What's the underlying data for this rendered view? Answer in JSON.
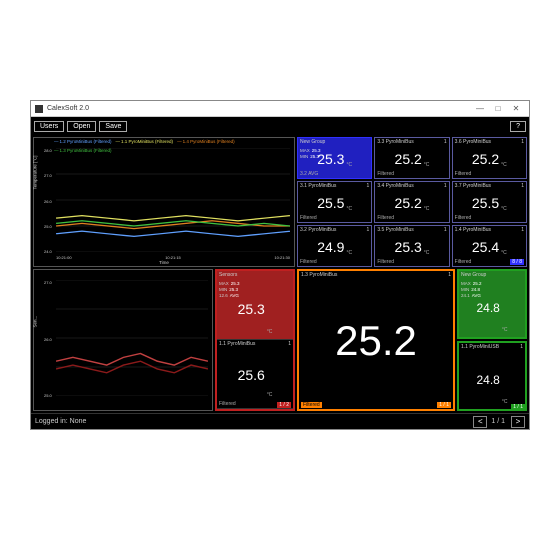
{
  "window": {
    "title": "CalexSoft 2.0"
  },
  "toolbar": {
    "users": "Users",
    "open": "Open",
    "save": "Save",
    "help": "?"
  },
  "colors": {
    "bg": "#000000",
    "border_default": "#5a5aa0",
    "border_group": "#3030ff",
    "border_orange": "#ff8000",
    "border_red": "#c02020",
    "border_green": "#20a020",
    "text": "#ffffff",
    "muted": "#aaaaaa",
    "series1": "#60a0ff",
    "series2": "#e0e060",
    "series3": "#e08020",
    "series4": "#40c040"
  },
  "chart1": {
    "ylabel": "Temperature [°C]",
    "xlabel": "Time",
    "ylim": [
      24.0,
      28.0
    ],
    "yticks": [
      "28.0",
      "27.0",
      "26.0",
      "25.0",
      "24.0"
    ],
    "xticks": [
      "10:21:00",
      "10:21:15",
      "10:21:30"
    ],
    "legend": [
      {
        "label": "1.2 PyroMiniBus (Filtered)",
        "color": "#60a0ff"
      },
      {
        "label": "1.1 PyroMiniBus (Filtered)",
        "color": "#e0e060"
      },
      {
        "label": "1.4 PyroMiniBus (Filtered)",
        "color": "#e08020"
      },
      {
        "label": "1.3 PyroMiniBus (Filtered)",
        "color": "#40c040"
      }
    ],
    "series": [
      {
        "color": "#e08020",
        "y": [
          25.0,
          25.1,
          25.0,
          24.9,
          25.0,
          25.1,
          25.2,
          25.1,
          25.0,
          25.0
        ]
      },
      {
        "color": "#e0e060",
        "y": [
          25.3,
          25.4,
          25.3,
          25.2,
          25.3,
          25.4,
          25.3,
          25.2,
          25.3,
          25.4
        ]
      },
      {
        "color": "#40c040",
        "y": [
          25.1,
          25.2,
          25.1,
          25.0,
          25.1,
          25.2,
          25.1,
          25.0,
          25.1,
          25.0
        ]
      },
      {
        "color": "#60a0ff",
        "y": [
          24.7,
          24.8,
          24.7,
          24.6,
          24.7,
          24.8,
          24.7,
          24.6,
          24.7,
          24.8
        ]
      }
    ]
  },
  "chart2": {
    "ylabel": "Sen...",
    "yticks": [
      "27.0",
      "26.0",
      "25.0"
    ],
    "ylim": [
      24.5,
      27.5
    ],
    "series": [
      {
        "color": "#c04040",
        "y": [
          25.4,
          25.5,
          25.4,
          25.3,
          25.5,
          25.6,
          25.4,
          25.3,
          25.5,
          25.4
        ]
      },
      {
        "color": "#8b1a1a",
        "y": [
          25.2,
          25.3,
          25.2,
          25.1,
          25.3,
          25.4,
          25.2,
          25.1,
          25.3,
          25.2
        ]
      }
    ]
  },
  "grid": {
    "counter": "8 / 8",
    "tiles": [
      {
        "name": "New Group",
        "val": "25.3",
        "unit": "°C",
        "footer": "3.2   AVG",
        "border": "#3030ff",
        "bg": "#2020c0",
        "stats": {
          "max": "25.3",
          "min": "25.3"
        }
      },
      {
        "name": "3.3 PyroMiniBus",
        "val": "25.2",
        "unit": "°C",
        "footer": "Filtered",
        "border": "#5a5aa0",
        "idx": "1"
      },
      {
        "name": "3.6 PyroMiniBus",
        "val": "25.2",
        "unit": "°C",
        "footer": "Filtered",
        "border": "#5a5aa0",
        "idx": "1"
      },
      {
        "name": "3.1 PyroMiniBus",
        "val": "25.5",
        "unit": "°C",
        "footer": "Filtered",
        "border": "#5a5aa0",
        "idx": "1"
      },
      {
        "name": "3.4 PyroMiniBus",
        "val": "25.2",
        "unit": "°C",
        "footer": "Filtered",
        "border": "#5a5aa0",
        "idx": "1"
      },
      {
        "name": "3.7 PyroMiniBus",
        "val": "25.5",
        "unit": "°C",
        "footer": "Filtered",
        "border": "#5a5aa0",
        "idx": "1"
      },
      {
        "name": "3.2 PyroMiniBus",
        "val": "24.9",
        "unit": "°C",
        "footer": "Filtered",
        "border": "#5a5aa0",
        "idx": "1"
      },
      {
        "name": "3.5 PyroMiniBus",
        "val": "25.3",
        "unit": "°C",
        "footer": "Filtered",
        "border": "#5a5aa0",
        "idx": "1"
      },
      {
        "name": "1.4 PyroMiniBus",
        "val": "25.4",
        "unit": "°C",
        "footer": "Filtered",
        "border": "#5a5aa0",
        "idx": "1"
      }
    ]
  },
  "sensors": {
    "title": "Sensors",
    "counter": "1 / 2",
    "tiles": [
      {
        "name": "Sensors",
        "val": "25.3",
        "unit": "°C",
        "bg": "#a02020",
        "stats": {
          "max": "25.3",
          "min": "25.3",
          "avg": "12.6"
        }
      },
      {
        "name": "1.1 PyroMiniBus",
        "val": "25.6",
        "unit": "°C",
        "footer": "Filtered",
        "idx": "1"
      }
    ]
  },
  "bignum": {
    "name": "1.3 PyroMiniBus",
    "val": "25.2",
    "footer": "Filtered",
    "counter": "1 / 1"
  },
  "rcol": {
    "counter": "1 / 1",
    "tiles": [
      {
        "name": "New Group",
        "val": "24.8",
        "unit": "°C",
        "bg": "#208020",
        "stats": {
          "max": "25.2",
          "min": "24.8",
          "avg": "24.1"
        }
      },
      {
        "name": "1.1 PyroMiniUSB",
        "val": "24.8",
        "unit": "°C",
        "footer": "",
        "idx": "1"
      }
    ]
  },
  "status": {
    "logged": "Logged in: None",
    "page": "1 / 1"
  }
}
